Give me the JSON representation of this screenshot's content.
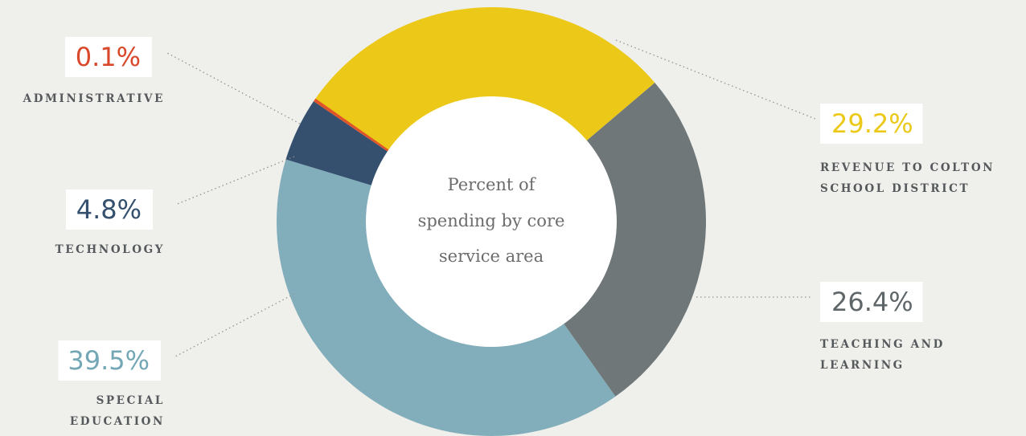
{
  "chart_data": {
    "type": "pie",
    "subtype": "donut",
    "center_label": [
      "Percent of",
      "spending by core",
      "service area"
    ],
    "slices": [
      {
        "key": "revenue",
        "value": 29.2,
        "value_label": "29.2%",
        "label_lines": [
          "REVENUE TO COLTON",
          "SCHOOL DISTRICT"
        ],
        "color": "#ecc918",
        "value_color": "#ecc918"
      },
      {
        "key": "teaching",
        "value": 26.4,
        "value_label": "26.4%",
        "label_lines": [
          "TEACHING AND",
          "LEARNING"
        ],
        "color": "#6f7779",
        "value_color": "#5f6669"
      },
      {
        "key": "special-ed",
        "value": 39.5,
        "value_label": "39.5%",
        "label_lines": [
          "SPECIAL",
          "EDUCATION"
        ],
        "color": "#82aebb",
        "value_color": "#74a7b6"
      },
      {
        "key": "technology",
        "value": 4.8,
        "value_label": "4.8%",
        "label_lines": [
          "TECHNOLOGY"
        ],
        "color": "#34506e",
        "value_color": "#34506e"
      },
      {
        "key": "administrative",
        "value": 0.1,
        "value_label": "0.1%",
        "label_lines": [
          "ADMINISTRATIVE"
        ],
        "color": "#e0542a",
        "value_color": "#d9482a"
      }
    ]
  }
}
